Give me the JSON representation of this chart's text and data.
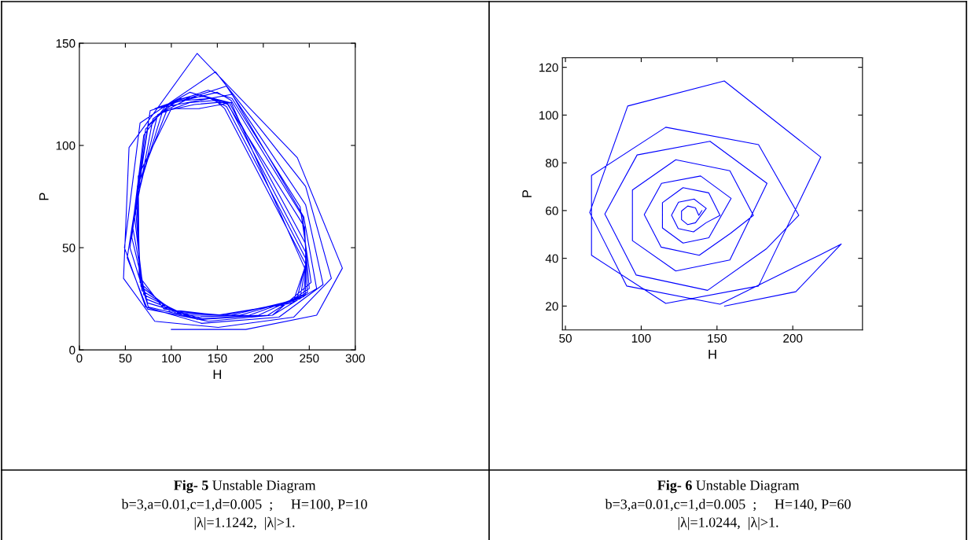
{
  "chart_data": [
    {
      "type": "line",
      "xlabel": "H",
      "ylabel": "P",
      "xlim": [
        0,
        300
      ],
      "ylim": [
        0,
        150
      ],
      "xticks": [
        0,
        50,
        100,
        150,
        200,
        250,
        300
      ],
      "yticks": [
        0,
        50,
        100,
        150
      ],
      "annotations": [
        "Fig- 5",
        "Unstable Diagram",
        "b=3,a=0.01,c=1,d=0.005  ;     H=100, P=10",
        "|λ|=1.1242,  |λ|>1."
      ],
      "series": [
        {
          "color": "#0000ff",
          "x": [
            100,
            181,
            258,
            286,
            237,
            128,
            54,
            48,
            82,
            151,
            233,
            274,
            246,
            148,
            66,
            49,
            72,
            133,
            217,
            265,
            246,
            160,
            77,
            52,
            74,
            140,
            210,
            258,
            244,
            166,
            82,
            88,
            140,
            166,
            240,
            252,
            210,
            140,
            75,
            55,
            70,
            95,
            150,
            165,
            243,
            250,
            205,
            135,
            74,
            57,
            72,
            100,
            120,
            160,
            245,
            248,
            195,
            128,
            72,
            58,
            75,
            105,
            128,
            163,
            246,
            246,
            185,
            120,
            70,
            60,
            80,
            110,
            135,
            162,
            247,
            244,
            175,
            112,
            68,
            61,
            85,
            115,
            142,
            160,
            247,
            240,
            165,
            105,
            67,
            62,
            90,
            120,
            148,
            158,
            246,
            236,
            157,
            98,
            66,
            63,
            95,
            125,
            150,
            165,
            245,
            232,
            150,
            92,
            65,
            64,
            100,
            130,
            166
          ],
          "values": [
            10,
            10,
            17,
            40,
            94,
            145,
            99,
            35,
            14,
            11,
            16,
            35,
            80,
            136,
            111,
            50,
            21,
            13,
            16,
            32,
            71,
            129,
            117,
            45,
            20,
            14,
            17,
            30,
            65,
            125,
            118,
            119,
            127,
            123,
            70,
            33,
            17,
            14,
            21,
            50,
            105,
            120,
            126,
            122,
            65,
            30,
            17,
            15,
            23,
            55,
            108,
            121,
            126,
            121,
            60,
            28,
            17,
            15,
            25,
            60,
            110,
            122,
            125,
            121,
            52,
            27,
            17,
            16,
            27,
            65,
            113,
            123,
            124,
            120,
            47,
            26,
            17,
            17,
            29,
            70,
            115,
            122,
            123,
            119,
            44,
            25,
            17,
            18,
            31,
            75,
            116,
            121,
            122,
            118,
            42,
            24,
            17,
            19,
            33,
            80,
            117,
            120,
            121,
            121,
            40,
            23,
            17,
            20,
            36,
            85,
            118,
            118,
            121
          ]
        }
      ]
    },
    {
      "type": "line",
      "xlabel": "H",
      "ylabel": "P",
      "xlim": [
        48,
        246
      ],
      "ylim": [
        10,
        124
      ],
      "xticks": [
        50,
        100,
        150,
        200
      ],
      "yticks": [
        20,
        40,
        60,
        80,
        100,
        120
      ],
      "annotations": [
        "Fig- 6",
        "Unstable Diagram",
        "b=3,a=0.01,c=1,d=0.005  ;     H=140, P=60",
        "|λ|=1.0244,  |λ|>1."
      ],
      "series": [
        {
          "color": "#0000ff",
          "x": [
            140,
            138,
            135.8,
            130.7,
            126.6,
            126.6,
            130.7,
            135.8,
            142.9,
            134.9,
            124.6,
            120,
            124.4,
            134.5,
            142.8,
            152,
            144.6,
            127.6,
            114,
            114,
            127.6,
            144.6,
            159.3,
            139.2,
            113.4,
            102,
            113.1,
            138.3,
            159,
            174,
            158.5,
            122.8,
            94.2,
            94.2,
            122.8,
            158.5,
            183,
            145.4,
            97.3,
            76,
            96.7,
            143.8,
            182.4,
            204,
            177.4,
            116.2,
            67.2,
            67.2,
            116.2,
            177.4,
            218.5,
            154.8,
            91.1,
            66,
            90.4,
            152,
            217.5,
            232,
            202,
            155
          ],
          "values": [
            60,
            58,
            61.1,
            61.9,
            59.8,
            56.2,
            54.1,
            54.9,
            60.9,
            64.8,
            63.5,
            58.1,
            52.5,
            51.1,
            54.9,
            58,
            67.4,
            69.6,
            63.3,
            52.7,
            46.4,
            48.6,
            65.1,
            74.5,
            71.4,
            58.3,
            44.7,
            41.3,
            50.5,
            58,
            76.7,
            81.3,
            68.6,
            47.4,
            34.7,
            39.3,
            71.4,
            89,
            83.3,
            58.6,
            33,
            26.6,
            43.9,
            58,
            87.6,
            94.9,
            74.7,
            41.3,
            21.1,
            28.4,
            82.4,
            114.3,
            103.8,
            59.2,
            28.4,
            20.8,
            41.3,
            46,
            26,
            20
          ]
        }
      ]
    }
  ]
}
